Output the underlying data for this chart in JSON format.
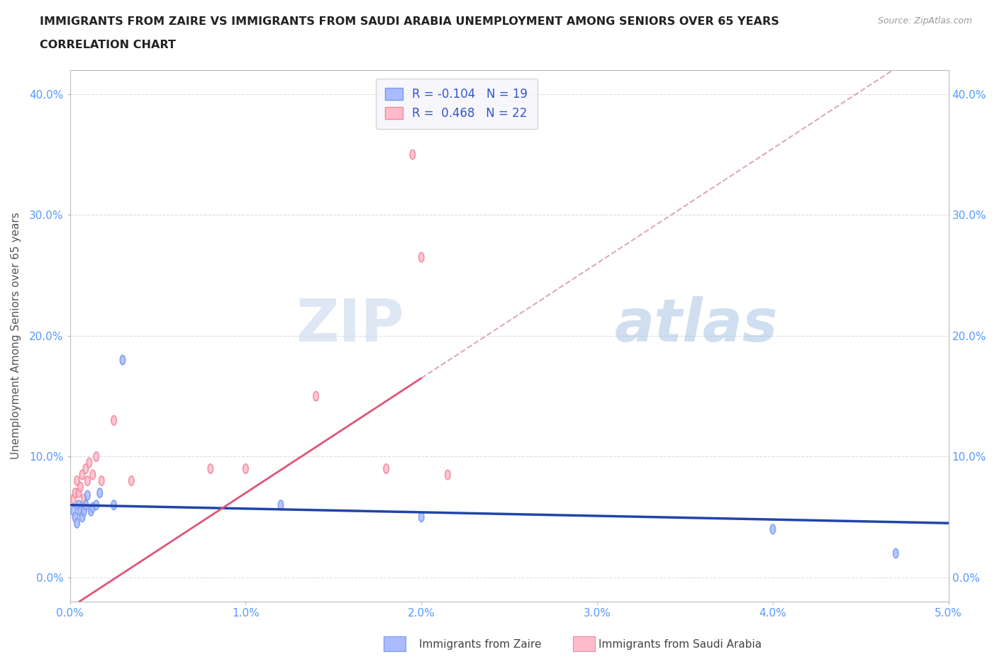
{
  "title_line1": "IMMIGRANTS FROM ZAIRE VS IMMIGRANTS FROM SAUDI ARABIA UNEMPLOYMENT AMONG SENIORS OVER 65 YEARS",
  "title_line2": "CORRELATION CHART",
  "source_text": "Source: ZipAtlas.com",
  "ylabel": "Unemployment Among Seniors over 65 years",
  "watermark_zip": "ZIP",
  "watermark_atlas": "atlas",
  "xlim": [
    0.0,
    0.05
  ],
  "ylim": [
    -0.02,
    0.42
  ],
  "xticks": [
    0.0,
    0.01,
    0.02,
    0.03,
    0.04,
    0.05
  ],
  "yticks": [
    0.0,
    0.1,
    0.2,
    0.3,
    0.4
  ],
  "zaire_color": "#aabbff",
  "zaire_edge_color": "#7799ee",
  "saudi_color": "#ffbbcc",
  "saudi_edge_color": "#ee8899",
  "zaire_line_color": "#2244aa",
  "saudi_line_color": "#dd5577",
  "saudi_line_dashed_color": "#ddaabb",
  "legend_label_color": "#3355cc",
  "legend_R_zaire": "R = -0.104",
  "legend_N_zaire": "N = 19",
  "legend_R_saudi": "R =  0.468",
  "legend_N_saudi": "N = 22",
  "zaire_x": [
    0.0002,
    0.0003,
    0.0004,
    0.0005,
    0.0006,
    0.0007,
    0.0008,
    0.0009,
    0.001,
    0.0012,
    0.0013,
    0.0015,
    0.0017,
    0.0025,
    0.003,
    0.012,
    0.02,
    0.04,
    0.047
  ],
  "zaire_y": [
    0.055,
    0.05,
    0.045,
    0.06,
    0.055,
    0.05,
    0.055,
    0.06,
    0.068,
    0.055,
    0.058,
    0.06,
    0.07,
    0.06,
    0.18,
    0.06,
    0.05,
    0.04,
    0.02
  ],
  "saudi_x": [
    0.0002,
    0.0003,
    0.0004,
    0.0005,
    0.0006,
    0.0007,
    0.0008,
    0.0009,
    0.001,
    0.0011,
    0.0013,
    0.0015,
    0.0018,
    0.0025,
    0.0035,
    0.008,
    0.01,
    0.014,
    0.018,
    0.0195,
    0.02,
    0.0215
  ],
  "saudi_y": [
    0.065,
    0.07,
    0.08,
    0.07,
    0.075,
    0.085,
    0.065,
    0.09,
    0.08,
    0.095,
    0.085,
    0.1,
    0.08,
    0.13,
    0.08,
    0.09,
    0.09,
    0.15,
    0.09,
    0.35,
    0.265,
    0.085
  ],
  "background_color": "#ffffff",
  "grid_color": "#dddddd",
  "title_color": "#222222",
  "axis_color": "#bbbbbb",
  "tick_label_color": "#5599ff",
  "legend_bg_color": "#f5f5fa"
}
